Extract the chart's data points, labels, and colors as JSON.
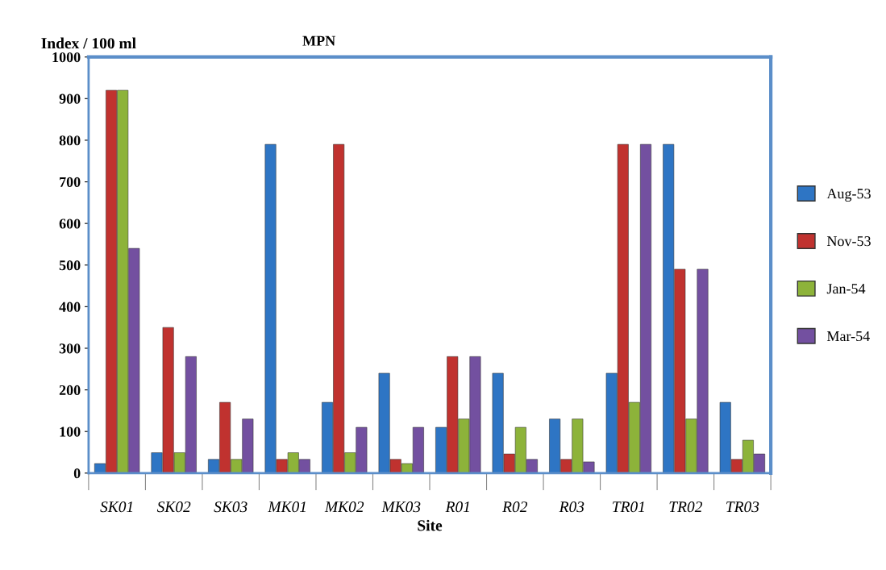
{
  "chart_data": {
    "type": "bar",
    "title": "MPN",
    "ylabel": "Index / 100 ml",
    "xlabel": "Site",
    "categories": [
      "SK01",
      "SK02",
      "SK03",
      "MK01",
      "MK02",
      "MK03",
      "R01",
      "R02",
      "R03",
      "TR01",
      "TR02",
      "TR03"
    ],
    "series": [
      {
        "name": "Aug-53",
        "color": "#2e75c4",
        "values": [
          23,
          49,
          33,
          790,
          170,
          240,
          110,
          240,
          130,
          240,
          790,
          170
        ]
      },
      {
        "name": "Nov-53",
        "color": "#c0322f",
        "values": [
          920,
          350,
          170,
          33,
          790,
          33,
          280,
          46,
          33,
          790,
          490,
          33
        ]
      },
      {
        "name": "Jan-54",
        "color": "#8db33a",
        "values": [
          920,
          49,
          33,
          49,
          49,
          23,
          130,
          110,
          130,
          170,
          130,
          79
        ]
      },
      {
        "name": "Mar-54",
        "color": "#7350a0",
        "values": [
          540,
          280,
          130,
          33,
          110,
          110,
          280,
          33,
          27,
          790,
          490,
          46
        ]
      }
    ],
    "ylim": [
      0,
      1000
    ],
    "yticks": [
      0,
      100,
      200,
      300,
      400,
      500,
      600,
      700,
      800,
      900,
      1000
    ],
    "grid": false,
    "legend": "right"
  }
}
